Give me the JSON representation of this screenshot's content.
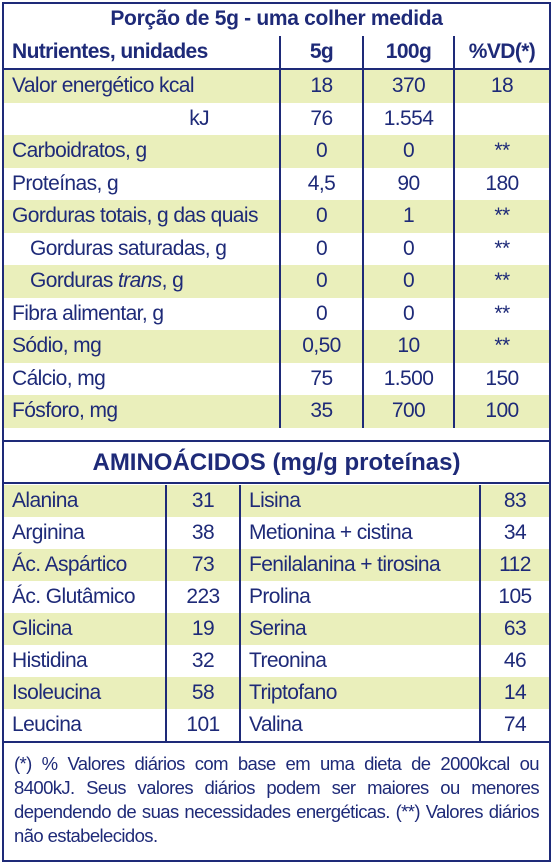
{
  "title": "Porção de 5g - uma colher medida",
  "header": {
    "name": "Nutrientes, unidades",
    "c1": "5g",
    "c2": "100g",
    "c3": "%VD(*)"
  },
  "rows": [
    {
      "name": "Valor energético kcal",
      "v1": "18",
      "v2": "370",
      "v3": "18"
    },
    {
      "name": "kJ",
      "v1": "76",
      "v2": "1.554",
      "v3": ""
    },
    {
      "name": "Carboidratos, g",
      "v1": "0",
      "v2": "0",
      "v3": "**"
    },
    {
      "name": "Proteínas, g",
      "v1": "4,5",
      "v2": "90",
      "v3": "180"
    },
    {
      "name": "Gorduras totais, g das quais",
      "v1": "0",
      "v2": "1",
      "v3": "**"
    },
    {
      "name": "Gorduras saturadas, g",
      "v1": "0",
      "v2": "0",
      "v3": "**"
    },
    {
      "name_pre": "Gorduras ",
      "name_italic": "trans",
      "name_post": ", g",
      "v1": "0",
      "v2": "0",
      "v3": "**"
    },
    {
      "name": "Fibra alimentar, g",
      "v1": "0",
      "v2": "0",
      "v3": "**"
    },
    {
      "name": "Sódio, mg",
      "v1": "0,50",
      "v2": "10",
      "v3": "**"
    },
    {
      "name": "Cálcio, mg",
      "v1": "75",
      "v2": "1.500",
      "v3": "150"
    },
    {
      "name": "Fósforo, mg",
      "v1": "35",
      "v2": "700",
      "v3": "100"
    }
  ],
  "amino_title": "AMINOÁCIDOS (mg/g proteínas)",
  "amino": [
    {
      "n1": "Alanina",
      "v1": "31",
      "n2": "Lisina",
      "v2": "83"
    },
    {
      "n1": "Arginina",
      "v1": "38",
      "n2": "Metionina + cistina",
      "v2": "34"
    },
    {
      "n1": "Ác. Aspártico",
      "v1": "73",
      "n2": "Fenilalanina + tirosina",
      "v2": "112"
    },
    {
      "n1": "Ác. Glutâmico",
      "v1": "223",
      "n2": "Prolina",
      "v2": "105"
    },
    {
      "n1": "Glicina",
      "v1": "19",
      "n2": "Serina",
      "v2": "63"
    },
    {
      "n1": "Histidina",
      "v1": "32",
      "n2": "Treonina",
      "v2": "46"
    },
    {
      "n1": "Isoleucina",
      "v1": "58",
      "n2": "Triptofano",
      "v2": "14"
    },
    {
      "n1": "Leucina",
      "v1": "101",
      "n2": "Valina",
      "v2": "74"
    }
  ],
  "footnote": "(*) % Valores diários com base em uma dieta de 2000kcal ou 8400kJ. Seus valores diários podem ser maiores ou menores dependendo de suas necessidades energéticas. (**) Valores diários não estabelecidos.",
  "colors": {
    "ink": "#1e2a78",
    "tint": "#eaefbb",
    "background": "#ffffff"
  }
}
